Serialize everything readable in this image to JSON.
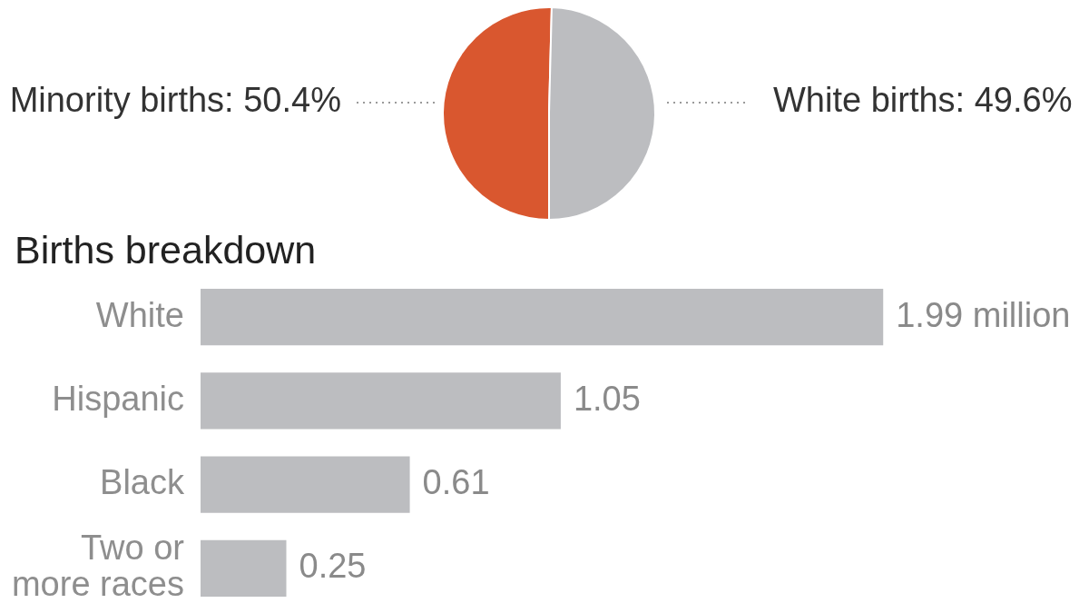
{
  "chart_data": [
    {
      "type": "pie",
      "categories": [
        "Minority births",
        "White births"
      ],
      "values": [
        50.4,
        49.6
      ],
      "colors": [
        "#d9572f",
        "#bcbdc0"
      ],
      "value_labels": [
        "50.4%",
        "49.6%"
      ]
    },
    {
      "type": "bar",
      "orientation": "horizontal",
      "title": "Births breakdown",
      "categories": [
        "White",
        "Hispanic",
        "Black",
        "Two or more races"
      ],
      "values": [
        1.99,
        1.05,
        0.61,
        0.25
      ],
      "color": "#bcbdc0",
      "value_labels": [
        "1.99 million",
        "1.05",
        "0.61",
        "0.25"
      ],
      "tick_labels": "y"
    }
  ]
}
